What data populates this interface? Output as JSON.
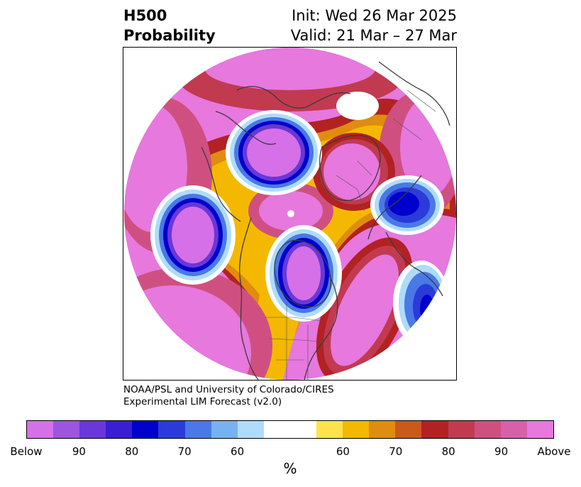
{
  "title": {
    "left_line1": "H500",
    "left_line2": "Probability",
    "right_line1": "Init: Wed 26 Mar 2025",
    "right_line2": "Valid: 21 Mar – 27 Mar"
  },
  "credit": {
    "line1": "NOAA/PSL and University of Colorado/CIRES",
    "line2": "Experimental LIM Forecast (v2.0)"
  },
  "colorbar": {
    "colors": [
      "#d670e8",
      "#9b55e0",
      "#6a37d8",
      "#3a1fd2",
      "#0000cc",
      "#2a3bd9",
      "#4a78e6",
      "#76b2f2",
      "#aedcfa",
      "#ffffff",
      "#ffffff",
      "#ffe24d",
      "#f5b800",
      "#e08c10",
      "#c95a1a",
      "#b22222",
      "#c13a50",
      "#cf5080",
      "#d860a8",
      "#e678de"
    ],
    "tick_labels": [
      "Below",
      "90",
      "80",
      "70",
      "60",
      "60",
      "70",
      "80",
      "90",
      "Above"
    ],
    "unit": "%"
  },
  "map": {
    "projection": "north polar stereographic",
    "blue_icon": "coastline-lines"
  }
}
